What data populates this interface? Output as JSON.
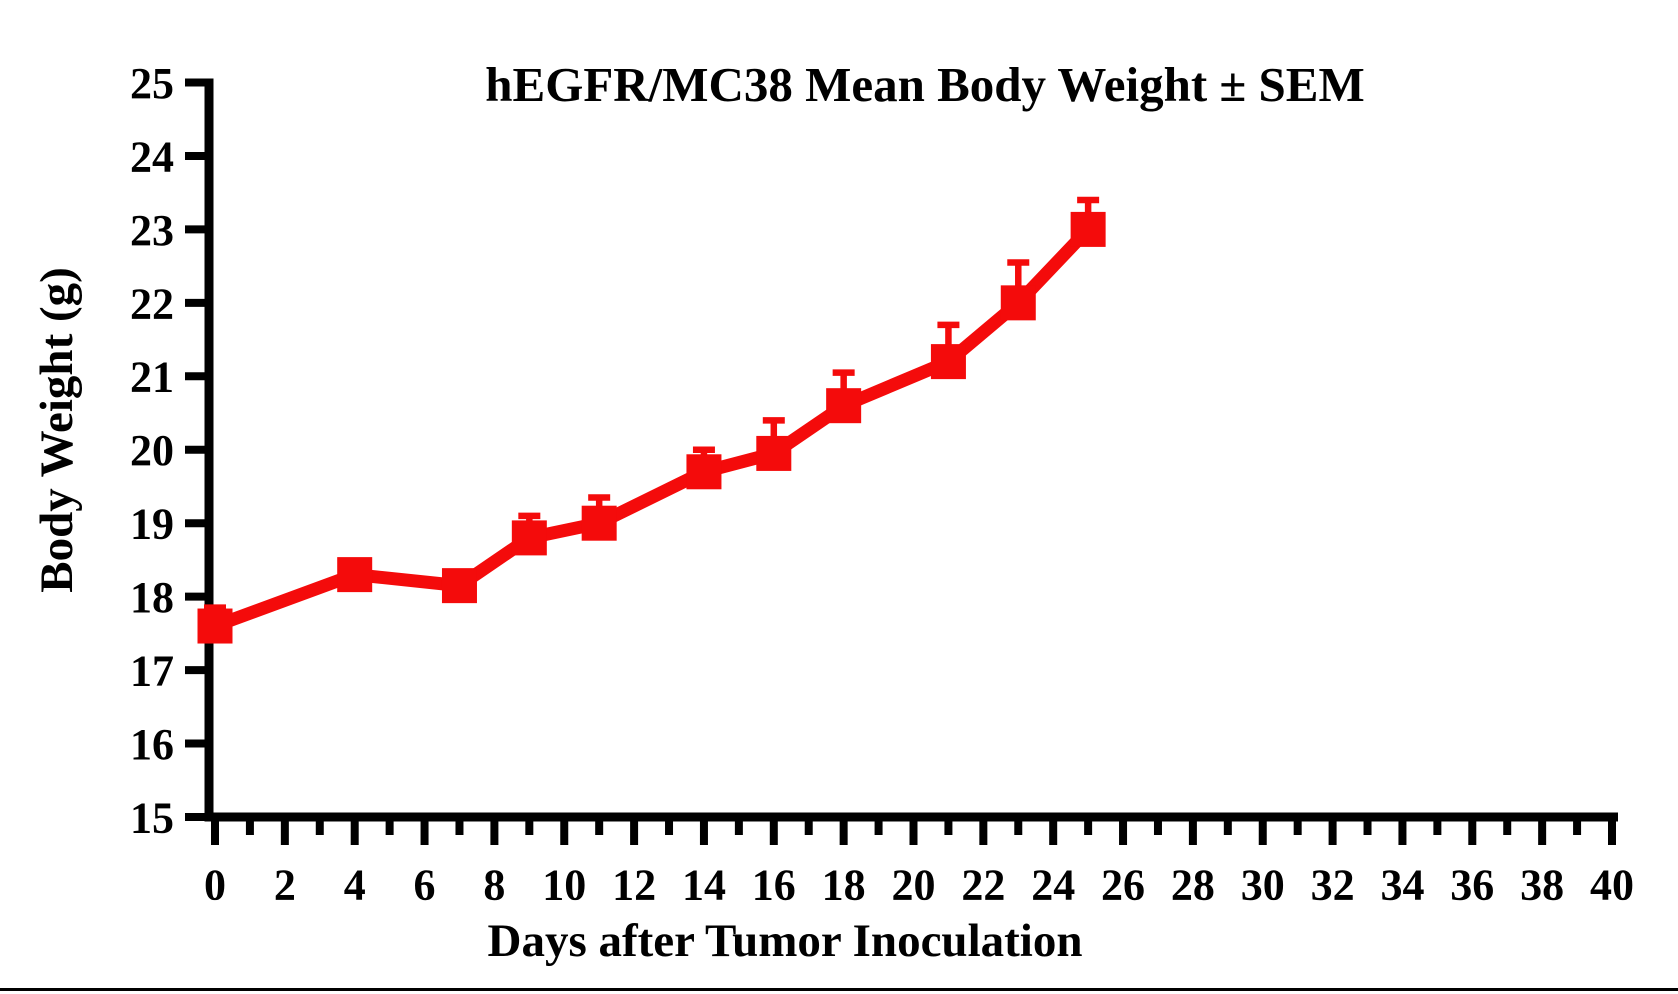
{
  "chart_data": {
    "type": "line",
    "title": "hEGFR/MC38 Mean Body Weight ± SEM",
    "xlabel": "Days after Tumor Inoculation",
    "ylabel": "Body Weight (g)",
    "xlim": [
      0,
      40
    ],
    "ylim": [
      15,
      25
    ],
    "grid": false,
    "legend_position": "none",
    "x_major_ticks": [
      0,
      2,
      4,
      6,
      8,
      10,
      12,
      14,
      16,
      18,
      20,
      22,
      24,
      26,
      28,
      30,
      32,
      34,
      36,
      38,
      40
    ],
    "x_minor_ticks": [
      1,
      3,
      5,
      7,
      9,
      11,
      13,
      15,
      17,
      19,
      21,
      23,
      25,
      27,
      29,
      31,
      33,
      35,
      37,
      39
    ],
    "y_ticks": [
      15,
      16,
      17,
      18,
      19,
      20,
      21,
      22,
      23,
      24,
      25
    ],
    "series": [
      {
        "name": "hEGFR/MC38 mean body weight",
        "color": "#f40b0b",
        "marker": "square",
        "error_bar_style": "upper-only-with-cap",
        "points": [
          {
            "x": 0,
            "y": 17.6,
            "sem": 0.25
          },
          {
            "x": 4,
            "y": 18.3,
            "sem": 0.15
          },
          {
            "x": 7,
            "y": 18.15,
            "sem": 0.15
          },
          {
            "x": 9,
            "y": 18.8,
            "sem": 0.3
          },
          {
            "x": 11,
            "y": 19.0,
            "sem": 0.35
          },
          {
            "x": 14,
            "y": 19.7,
            "sem": 0.3
          },
          {
            "x": 16,
            "y": 19.95,
            "sem": 0.45
          },
          {
            "x": 18,
            "y": 20.6,
            "sem": 0.45
          },
          {
            "x": 21,
            "y": 21.2,
            "sem": 0.5
          },
          {
            "x": 23,
            "y": 22.0,
            "sem": 0.55
          },
          {
            "x": 25,
            "y": 23.0,
            "sem": 0.4
          }
        ]
      }
    ],
    "axis_color": "#000000"
  }
}
